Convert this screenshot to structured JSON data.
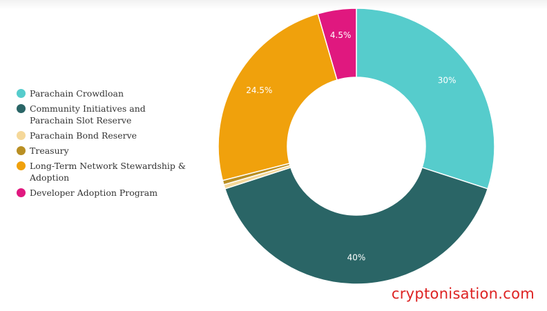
{
  "chart_data": {
    "type": "pie",
    "variant": "donut",
    "legend_position": "left",
    "slices": [
      {
        "label": "Parachain Crowdloan",
        "value": 30,
        "display": "30%",
        "color": "#56cccc"
      },
      {
        "label": "Community Initiatives and Parachain Slot Reserve",
        "value": 40,
        "display": "40%",
        "color": "#2a6566"
      },
      {
        "label": "Parachain Bond Reserve",
        "value": 0.5,
        "display": "",
        "color": "#f5d89a"
      },
      {
        "label": "Treasury",
        "value": 0.5,
        "display": "",
        "color": "#b98f23"
      },
      {
        "label": "Long-Term Network Stewardship & Adoption",
        "value": 24.5,
        "display": "24.5%",
        "color": "#f0a10c"
      },
      {
        "label": "Developer Adoption Program",
        "value": 4.5,
        "display": "4.5%",
        "color": "#e0187f"
      }
    ]
  },
  "watermark": "cryptonisation.com"
}
